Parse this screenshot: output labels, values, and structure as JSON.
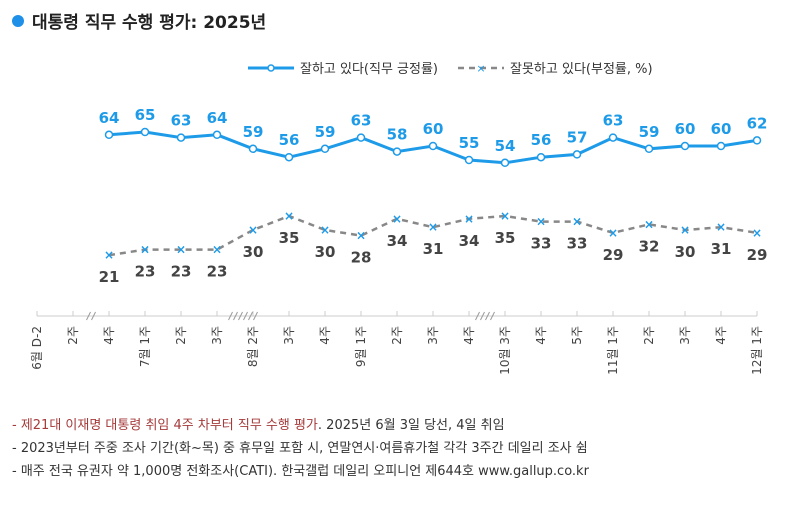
{
  "title": "대통령 직무 수행 평가: 2025년",
  "colors": {
    "positive": "#1e9be8",
    "negative": "#888888",
    "negative_marker": "#1e9be8",
    "accent_note": "#a53a3a"
  },
  "chart_data": {
    "type": "line",
    "title": "대통령 직무 수행 평가: 2025년",
    "categories": [
      "6월 D-2",
      "2주",
      "4주",
      "7월 1주",
      "2주",
      "3주",
      "8월 2주",
      "3주",
      "4주",
      "9월 1주",
      "2주",
      "3주",
      "4주",
      "10월 3주",
      "4주",
      "5주",
      "11월 1주",
      "2주",
      "3주",
      "4주",
      "12월 1주"
    ],
    "axis_breaks_after": [
      "2주",
      "7월 3주",
      "9월 4주"
    ],
    "series": [
      {
        "name": "잘하고 있다(직무 긍정률)",
        "style": "solid-circle",
        "values": [
          null,
          null,
          64,
          65,
          63,
          64,
          59,
          56,
          59,
          63,
          58,
          60,
          55,
          54,
          56,
          57,
          63,
          59,
          60,
          60,
          62
        ]
      },
      {
        "name": "잘못하고 있다(부정률, %)",
        "style": "dashed-x",
        "values": [
          null,
          null,
          21,
          23,
          23,
          23,
          30,
          35,
          30,
          28,
          34,
          31,
          34,
          35,
          33,
          33,
          29,
          32,
          30,
          31,
          29
        ]
      }
    ],
    "legend": "top-right",
    "grid": false
  },
  "notes": [
    {
      "highlight": "- 제21대 이재명 대통령 취임 4주 차부터 직무 수행 평가",
      "text": ". 2025년 6월 3일 당선, 4일 취임"
    },
    {
      "text": "- 2023년부터 주중 조사 기간(화~목) 중 휴무일 포함 시, 연말연시·여름휴가철 각각 3주간 데일리 조사 쉼"
    },
    {
      "text": "- 매주 전국 유권자 약 1,000명 전화조사(CATI). 한국갤럽 데일리 오피니언 제644호 www.gallup.co.kr"
    }
  ]
}
